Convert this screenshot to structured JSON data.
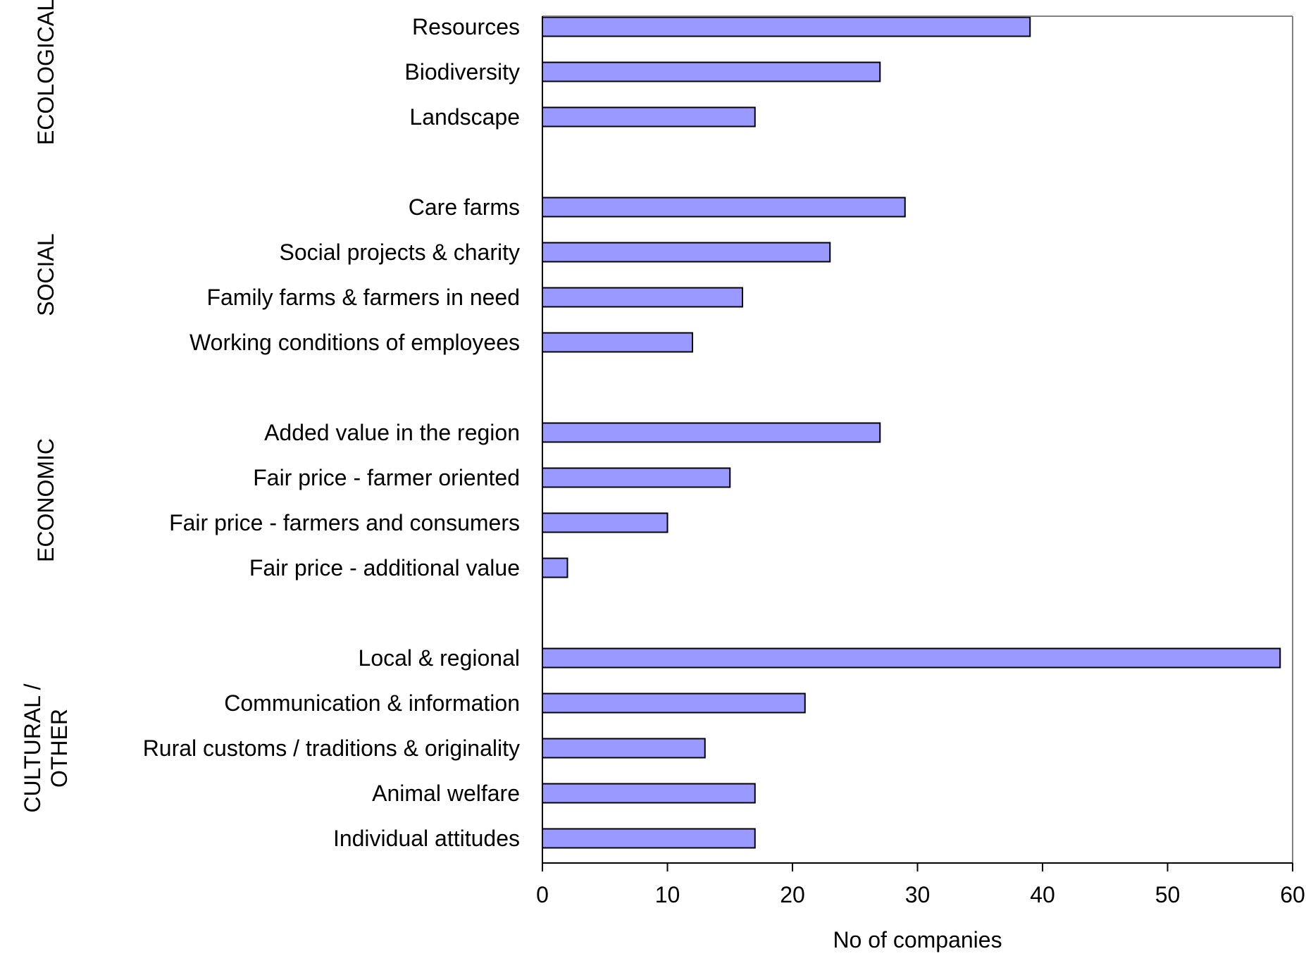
{
  "chart_data": {
    "type": "bar",
    "orientation": "horizontal",
    "title": "",
    "xlabel": "No of companies",
    "ylabel": "",
    "xlim": [
      0,
      60
    ],
    "xticks": [
      0,
      10,
      20,
      30,
      40,
      50,
      60
    ],
    "grid": false,
    "legend": "none",
    "bar_color": "#9999ff",
    "bar_edge_color": "#000000",
    "categories": [
      "Resources",
      "Biodiversity",
      "Landscape",
      "Care farms",
      "Social projects & charity",
      "Family farms & farmers in need",
      "Working conditions of employees",
      "Added value in the region",
      "Fair price - farmer oriented",
      "Fair price - farmers and consumers",
      "Fair price - additional value",
      "Local & regional",
      "Communication & information",
      "Rural customs / traditions & originality",
      "Animal welfare",
      "Individual attitudes"
    ],
    "values": [
      39,
      27,
      17,
      29,
      23,
      16,
      12,
      27,
      15,
      10,
      2,
      59,
      21,
      13,
      17,
      17
    ],
    "groups": [
      {
        "lines": [
          "ECOLOGICAL"
        ],
        "categories": [
          "Resources",
          "Biodiversity",
          "Landscape"
        ]
      },
      {
        "lines": [
          "SOCIAL"
        ],
        "categories": [
          "Care farms",
          "Social projects & charity",
          "Family farms & farmers in need",
          "Working conditions of employees"
        ]
      },
      {
        "lines": [
          "ECONOMIC"
        ],
        "categories": [
          "Added value in the region",
          "Fair price - farmer oriented",
          "Fair price - farmers and consumers",
          "Fair price - additional value"
        ]
      },
      {
        "lines": [
          "CULTURAL /",
          "OTHER"
        ],
        "categories": [
          "Local & regional",
          "Communication & information",
          "Rural customs / traditions & originality",
          "Animal welfare",
          "Individual attitudes"
        ]
      }
    ]
  }
}
